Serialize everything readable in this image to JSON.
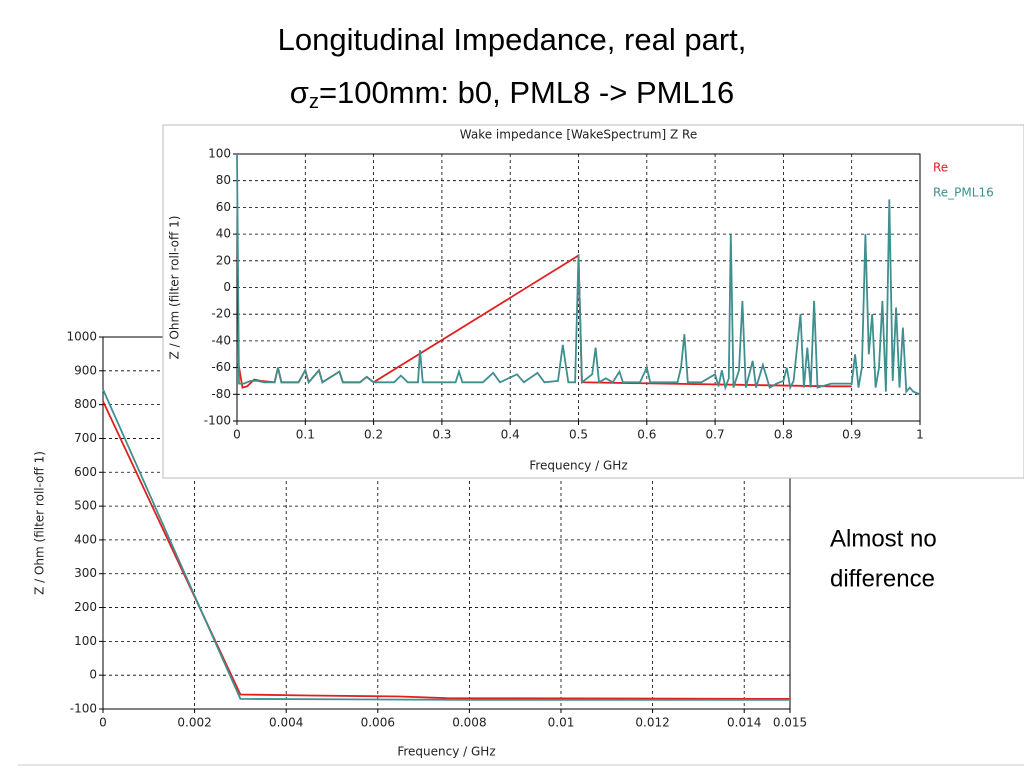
{
  "slide": {
    "title_line1": "Longitudinal Impedance, real part,",
    "title_line2_prefix": "σ",
    "title_line2_subscript": "z",
    "title_line2_suffix": "=100mm: b0, PML8 -> PML16",
    "note_lines": [
      "Almost no",
      "difference"
    ]
  },
  "chart_data": [
    {
      "type": "line",
      "x_label": "Frequency / GHz",
      "y_label": "Z / Ohm (filter roll-off 1)",
      "xlim": [
        0,
        0.015
      ],
      "xticks": [
        0,
        0.002,
        0.004,
        0.006,
        0.008,
        0.01,
        0.012,
        0.014,
        0.015
      ],
      "ylim": [
        -100,
        1000
      ],
      "yticks": [
        -100,
        0,
        100,
        200,
        300,
        400,
        500,
        600,
        700,
        800,
        900,
        1000
      ],
      "grid": true,
      "series": [
        {
          "name": "Re",
          "color": "#e02020",
          "x": [
            0,
            0.003,
            0.0045,
            0.0065,
            0.0075,
            0.015
          ],
          "values": [
            810,
            -57,
            -60,
            -63,
            -68,
            -70
          ]
        },
        {
          "name": "Re_PML16",
          "color": "#3f8f8f",
          "x": [
            0,
            0.003,
            0.008,
            0.015
          ],
          "values": [
            845,
            -70,
            -73,
            -73
          ]
        }
      ]
    },
    {
      "type": "line",
      "title": "Wake impedance [WakeSpectrum] Z Re",
      "x_label": "Frequency / GHz",
      "y_label": "Z / Ohm (filter roll-off 1)",
      "xlim": [
        0,
        1
      ],
      "xticks": [
        0,
        0.1,
        0.2,
        0.3,
        0.4,
        0.5,
        0.6,
        0.7,
        0.8,
        0.9,
        1
      ],
      "ylim": [
        -100,
        100
      ],
      "yticks": [
        -100,
        -80,
        -60,
        -40,
        -20,
        0,
        20,
        40,
        60,
        80,
        100
      ],
      "grid": true,
      "legend": "right",
      "series": [
        {
          "name": "Re",
          "color": "#e02020",
          "x": [
            0.002,
            0.008,
            0.015,
            0.025,
            0.035,
            0.055,
            0.06,
            0.065,
            0.09,
            0.1,
            0.105,
            0.12,
            0.125,
            0.15,
            0.155,
            0.18,
            0.19,
            0.2,
            0.5,
            0.505,
            0.87,
            0.9
          ],
          "values": [
            -57,
            -75,
            -74,
            -69,
            -70,
            -71,
            -60,
            -71,
            -71,
            -62,
            -71,
            -62,
            -71,
            -63,
            -71,
            -71,
            -67,
            -71,
            24,
            -71,
            -74,
            -74
          ]
        },
        {
          "name": "Re_PML16",
          "color": "#3f8f8f",
          "x": [
            0,
            0.003,
            0.01,
            0.02,
            0.03,
            0.04,
            0.055,
            0.06,
            0.065,
            0.09,
            0.1,
            0.105,
            0.12,
            0.125,
            0.15,
            0.155,
            0.18,
            0.19,
            0.2,
            0.23,
            0.24,
            0.25,
            0.265,
            0.268,
            0.272,
            0.32,
            0.325,
            0.33,
            0.36,
            0.375,
            0.385,
            0.41,
            0.42,
            0.44,
            0.45,
            0.47,
            0.477,
            0.485,
            0.495,
            0.5,
            0.505,
            0.52,
            0.525,
            0.53,
            0.54,
            0.55,
            0.56,
            0.565,
            0.59,
            0.6,
            0.605,
            0.645,
            0.65,
            0.655,
            0.66,
            0.68,
            0.7,
            0.705,
            0.71,
            0.715,
            0.72,
            0.723,
            0.727,
            0.735,
            0.74,
            0.745,
            0.755,
            0.76,
            0.77,
            0.78,
            0.79,
            0.8,
            0.805,
            0.81,
            0.815,
            0.825,
            0.83,
            0.835,
            0.84,
            0.845,
            0.85,
            0.87,
            0.9,
            0.905,
            0.91,
            0.915,
            0.92,
            0.925,
            0.93,
            0.935,
            0.94,
            0.945,
            0.95,
            0.955,
            0.96,
            0.965,
            0.97,
            0.975,
            0.98,
            0.985,
            0.99,
            1
          ],
          "values": [
            100,
            -72,
            -72,
            -70,
            -70,
            -71,
            -71,
            -60,
            -71,
            -71,
            -62,
            -71,
            -62,
            -71,
            -63,
            -71,
            -71,
            -67,
            -71,
            -71,
            -66,
            -71,
            -71,
            -47,
            -71,
            -71,
            -63,
            -71,
            -71,
            -64,
            -71,
            -65,
            -71,
            -64,
            -71,
            -70,
            -43,
            -71,
            -71,
            24,
            -71,
            -65,
            -45,
            -71,
            -68,
            -71,
            -63,
            -71,
            -71,
            -60,
            -71,
            -71,
            -60,
            -35,
            -71,
            -71,
            -65,
            -74,
            -62,
            -75,
            -68,
            40,
            -75,
            -62,
            -10,
            -75,
            -55,
            -75,
            -58,
            -75,
            -72,
            -70,
            -60,
            -75,
            -70,
            -20,
            -75,
            -45,
            -75,
            -10,
            -75,
            -72,
            -72,
            -50,
            -75,
            -60,
            40,
            -50,
            -20,
            -75,
            -60,
            -10,
            -78,
            66,
            -70,
            -15,
            -75,
            -30,
            -78,
            -75,
            -78,
            -80
          ]
        }
      ]
    }
  ]
}
